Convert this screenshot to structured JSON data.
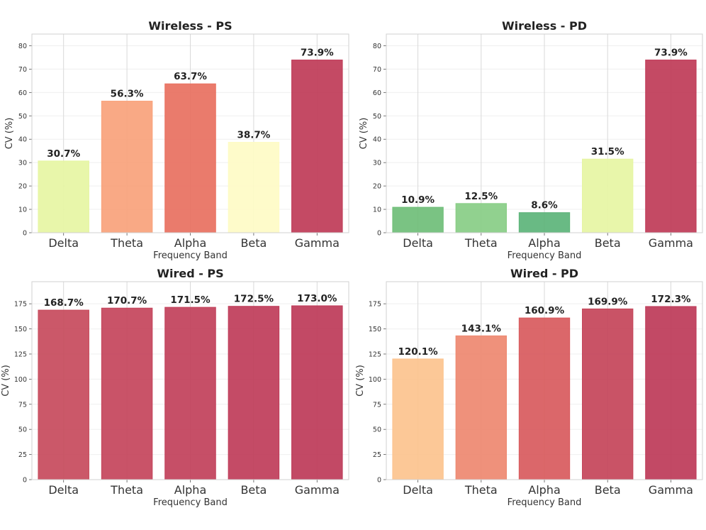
{
  "chart_data": [
    {
      "type": "bar",
      "title": "Wireless - PS",
      "xlabel": "Frequency Band",
      "ylabel": "CV (%)",
      "categories": [
        "Delta",
        "Theta",
        "Alpha",
        "Beta",
        "Gamma"
      ],
      "values": [
        30.7,
        56.3,
        63.7,
        38.7,
        73.9
      ],
      "value_labels": [
        "30.7%",
        "56.3%",
        "63.7%",
        "38.7%",
        "73.9%"
      ],
      "colors": [
        "#e6f5a3",
        "#f9a27b",
        "#e8705f",
        "#fefbc6",
        "#bf3b57"
      ],
      "ylim": [
        0,
        85
      ],
      "yticks": [
        0,
        10,
        20,
        30,
        40,
        50,
        60,
        70,
        80
      ],
      "grid": true
    },
    {
      "type": "bar",
      "title": "Wireless - PD",
      "xlabel": "Frequency Band",
      "ylabel": "CV (%)",
      "categories": [
        "Delta",
        "Theta",
        "Alpha",
        "Beta",
        "Gamma"
      ],
      "values": [
        10.9,
        12.5,
        8.6,
        31.5,
        73.9
      ],
      "value_labels": [
        "10.9%",
        "12.5%",
        "8.6%",
        "31.5%",
        "73.9%"
      ],
      "colors": [
        "#6fbe78",
        "#88cd85",
        "#5cb479",
        "#e6f5a3",
        "#bf3b57"
      ],
      "ylim": [
        0,
        85
      ],
      "yticks": [
        0,
        10,
        20,
        30,
        40,
        50,
        60,
        70,
        80
      ],
      "grid": true
    },
    {
      "type": "bar",
      "title": "Wired - PS",
      "xlabel": "Frequency Band",
      "ylabel": "CV (%)",
      "categories": [
        "Delta",
        "Theta",
        "Alpha",
        "Beta",
        "Gamma"
      ],
      "values": [
        168.7,
        170.7,
        171.5,
        172.5,
        173.0
      ],
      "value_labels": [
        "168.7%",
        "170.7%",
        "171.5%",
        "172.5%",
        "173.0%"
      ],
      "colors": [
        "#c74a5c",
        "#c4445b",
        "#c1405a",
        "#bf3c59",
        "#bd3a58"
      ],
      "ylim": [
        0,
        197
      ],
      "yticks": [
        0,
        25,
        50,
        75,
        100,
        125,
        150,
        175
      ],
      "grid": true
    },
    {
      "type": "bar",
      "title": "Wired - PD",
      "xlabel": "Frequency Band",
      "ylabel": "CV (%)",
      "categories": [
        "Delta",
        "Theta",
        "Alpha",
        "Beta",
        "Gamma"
      ],
      "values": [
        120.1,
        143.1,
        160.9,
        169.9,
        172.3
      ],
      "value_labels": [
        "120.1%",
        "143.1%",
        "160.9%",
        "169.9%",
        "172.3%"
      ],
      "colors": [
        "#fcc38e",
        "#ee8870",
        "#d85a5d",
        "#c44459",
        "#bd3a58"
      ],
      "ylim": [
        0,
        197
      ],
      "yticks": [
        0,
        25,
        50,
        75,
        100,
        125,
        150,
        175
      ],
      "grid": true
    }
  ]
}
